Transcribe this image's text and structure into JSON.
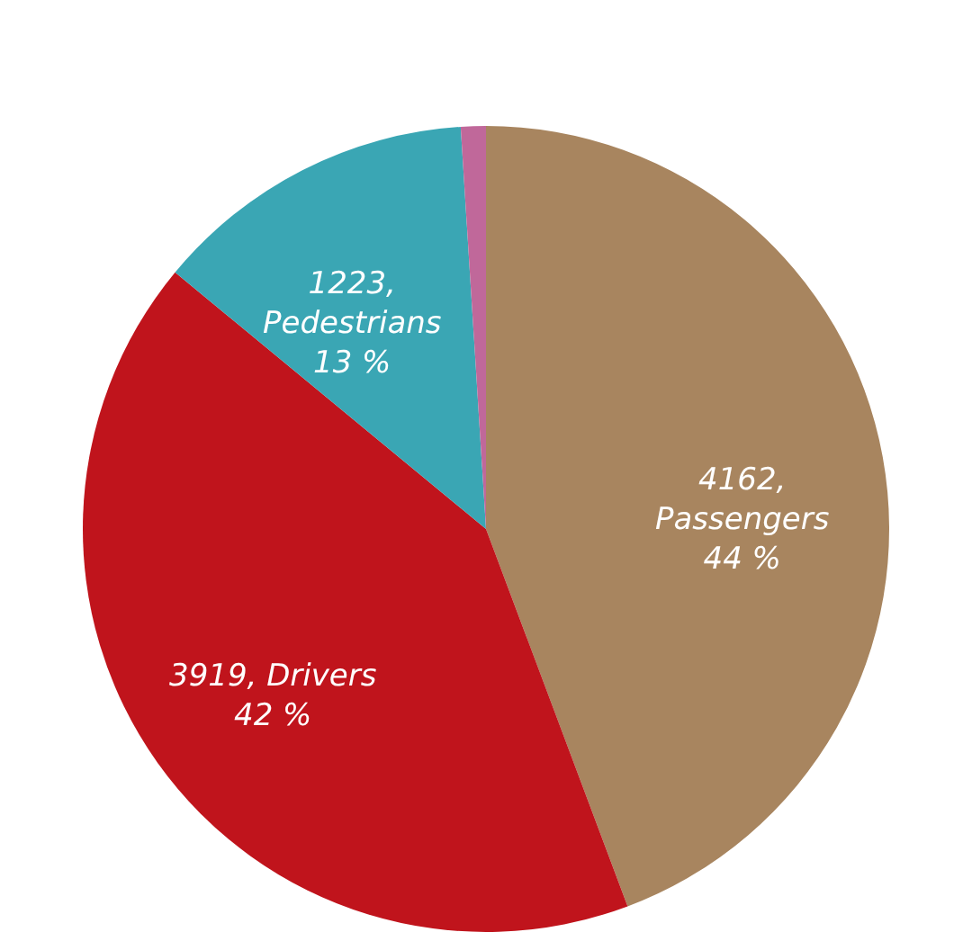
{
  "chart_data": {
    "type": "pie",
    "values": [
      4162,
      3919,
      1223,
      94
    ],
    "colors": [
      "#a8855f",
      "#c0141c",
      "#3aa6b4",
      "#c0689a"
    ],
    "value_labels": [
      "4162,\nPassengers\n44 %",
      "3919, Drivers\n42 %",
      "1223,\nPedestrians\n13 %",
      null
    ],
    "legend": false
  }
}
